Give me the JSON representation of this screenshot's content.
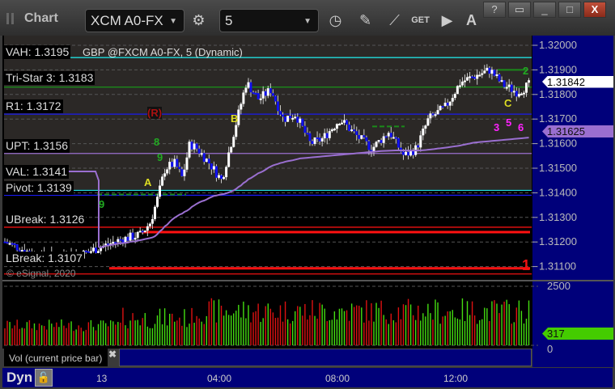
{
  "window": {
    "title": "Chart",
    "symbol": "XCM A0-FX",
    "interval": "5",
    "help": "?",
    "close": "X"
  },
  "toolbar_icons": [
    "settings-icon",
    "clock-icon",
    "pencil-icon",
    "chart-line-icon",
    "get-icon",
    "play-icon",
    "auto-icon"
  ],
  "get_label": "GET",
  "auto_label": "A",
  "chart": {
    "header": "GBP @FXCM A0-FX, 5 (Dynamic)",
    "copyright": "© eSignal, 2020",
    "colors": {
      "up": "#ffffff",
      "down": "#1010ee",
      "vwap": "#9a6fd0",
      "volume_up": "#44dd11",
      "volume_down": "#dd1111",
      "axis_bg": "#00007a"
    },
    "levels": [
      {
        "label": "VAH: 1.3195",
        "value": 1.3195,
        "color": "#22dddd"
      },
      {
        "label": "Tri-Star 3: 1.3183",
        "value": 1.3183,
        "color": "#1a8a1a"
      },
      {
        "label": "R1: 1.3172",
        "value": 1.3172,
        "color": "#1a1aee"
      },
      {
        "label": "UPT: 1.3156",
        "value": 1.3156,
        "color": "#9a6fd0"
      },
      {
        "label": "VAL: 1.3141",
        "value": 1.3141,
        "color": "#22dddd"
      },
      {
        "label": "Pivot: 1.3139",
        "value": 1.3139,
        "color": "#1a1aee"
      },
      {
        "label": "UBreak: 1.3126",
        "value": 1.3126,
        "color": "#ee1111"
      },
      {
        "label": "LBreak: 1.3107",
        "value": 1.3107,
        "color": "#ee1111"
      }
    ],
    "annotations": [
      {
        "text": "A",
        "color": "#dddd22"
      },
      {
        "text": "B",
        "color": "#dddd22"
      },
      {
        "text": "C",
        "color": "#dddd22"
      },
      {
        "text": "(R)",
        "color": "#aa1111"
      },
      {
        "text": "8",
        "color": "#22aa22"
      },
      {
        "text": "9",
        "color": "#22aa22"
      },
      {
        "text": "2",
        "color": "#22aa22"
      },
      {
        "text": "1",
        "color": "#ee1111"
      },
      {
        "text": "3",
        "color": "#ff22ff"
      },
      {
        "text": "5",
        "color": "#ff22ff"
      },
      {
        "text": "6",
        "color": "#ff22ff"
      },
      {
        "text": "9",
        "color": "#22aa22"
      }
    ],
    "price_axis": {
      "ticks": [
        "1.32000",
        "1.31900",
        "1.31800",
        "1.31700",
        "1.31600",
        "1.31500",
        "1.31400",
        "1.31300",
        "1.31200",
        "1.31100"
      ],
      "min": 1.311,
      "max": 1.32
    },
    "last_price": "1.31842",
    "vwap_price": "1.31625",
    "volume_axis": {
      "ticks": [
        "2500",
        "0"
      ]
    },
    "last_volume": "317",
    "volume_label": "Vol (current price bar)",
    "time_axis": {
      "labels": [
        "13",
        "04:00",
        "08:00",
        "12:00"
      ]
    },
    "dyn_label": "Dyn"
  },
  "chart_data": {
    "type": "candlestick",
    "price_path": [
      [
        "12 20:45",
        1.312
      ],
      [
        "12 21:55",
        1.3114
      ],
      [
        "12 23:20",
        1.3115
      ],
      [
        "13 00:00",
        1.3118
      ],
      [
        "13 00:40",
        1.3121
      ],
      [
        "13 01:20",
        1.3123
      ],
      [
        "13 01:40",
        1.3128
      ],
      [
        "13 01:55",
        1.3138
      ],
      [
        "13 02:10",
        1.315
      ],
      [
        "13 02:30",
        1.3152
      ],
      [
        "13 02:45",
        1.3146
      ],
      [
        "13 03:00",
        1.316
      ],
      [
        "13 03:15",
        1.3158
      ],
      [
        "13 03:40",
        1.3152
      ],
      [
        "13 04:05",
        1.3145
      ],
      [
        "13 04:30",
        1.3165
      ],
      [
        "13 04:55",
        1.3185
      ],
      [
        "13 05:20",
        1.3178
      ],
      [
        "13 05:45",
        1.3182
      ],
      [
        "13 06:10",
        1.317
      ],
      [
        "13 06:35",
        1.3172
      ],
      [
        "13 07:05",
        1.316
      ],
      [
        "13 07:30",
        1.3162
      ],
      [
        "13 08:05",
        1.317
      ],
      [
        "13 08:40",
        1.3163
      ],
      [
        "13 09:10",
        1.3158
      ],
      [
        "13 09:45",
        1.3165
      ],
      [
        "13 10:15",
        1.3155
      ],
      [
        "13 10:40",
        1.3158
      ],
      [
        "13 11:05",
        1.317
      ],
      [
        "13 11:40",
        1.3175
      ],
      [
        "13 12:10",
        1.3185
      ],
      [
        "13 12:45",
        1.3188
      ],
      [
        "13 13:10",
        1.319
      ],
      [
        "13 13:35",
        1.3184
      ],
      [
        "13 14:05",
        1.3181
      ],
      [
        "13 14:30",
        1.3184
      ]
    ],
    "ylim": [
      1.311,
      1.32
    ],
    "volume_ylim": [
      0,
      2500
    ]
  }
}
